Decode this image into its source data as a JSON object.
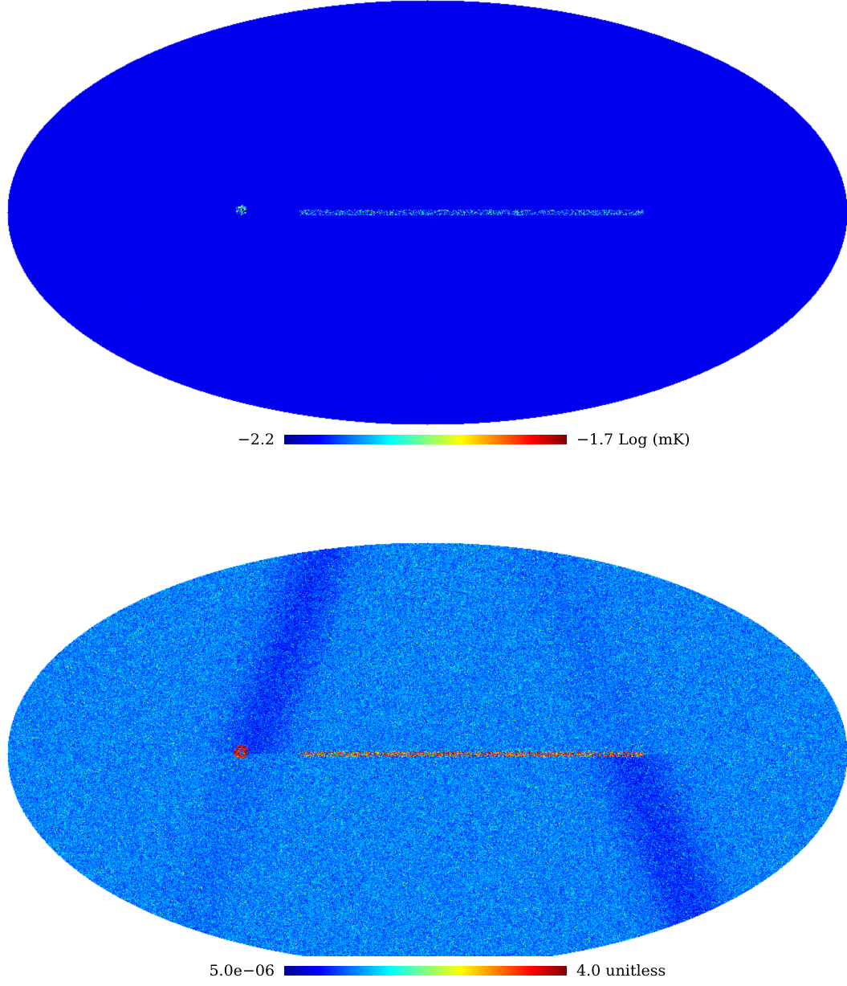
{
  "maps": [
    {
      "projection": "mollweide",
      "colormap": "jet",
      "colorbar": {
        "min_label": "−2.2",
        "max_label": "−1.7",
        "unit": "Log (mK)"
      }
    },
    {
      "projection": "mollweide",
      "colormap": "jet",
      "colorbar": {
        "min_label": "5.0e−06",
        "max_label": "4.0",
        "unit": "unitless"
      }
    }
  ]
}
